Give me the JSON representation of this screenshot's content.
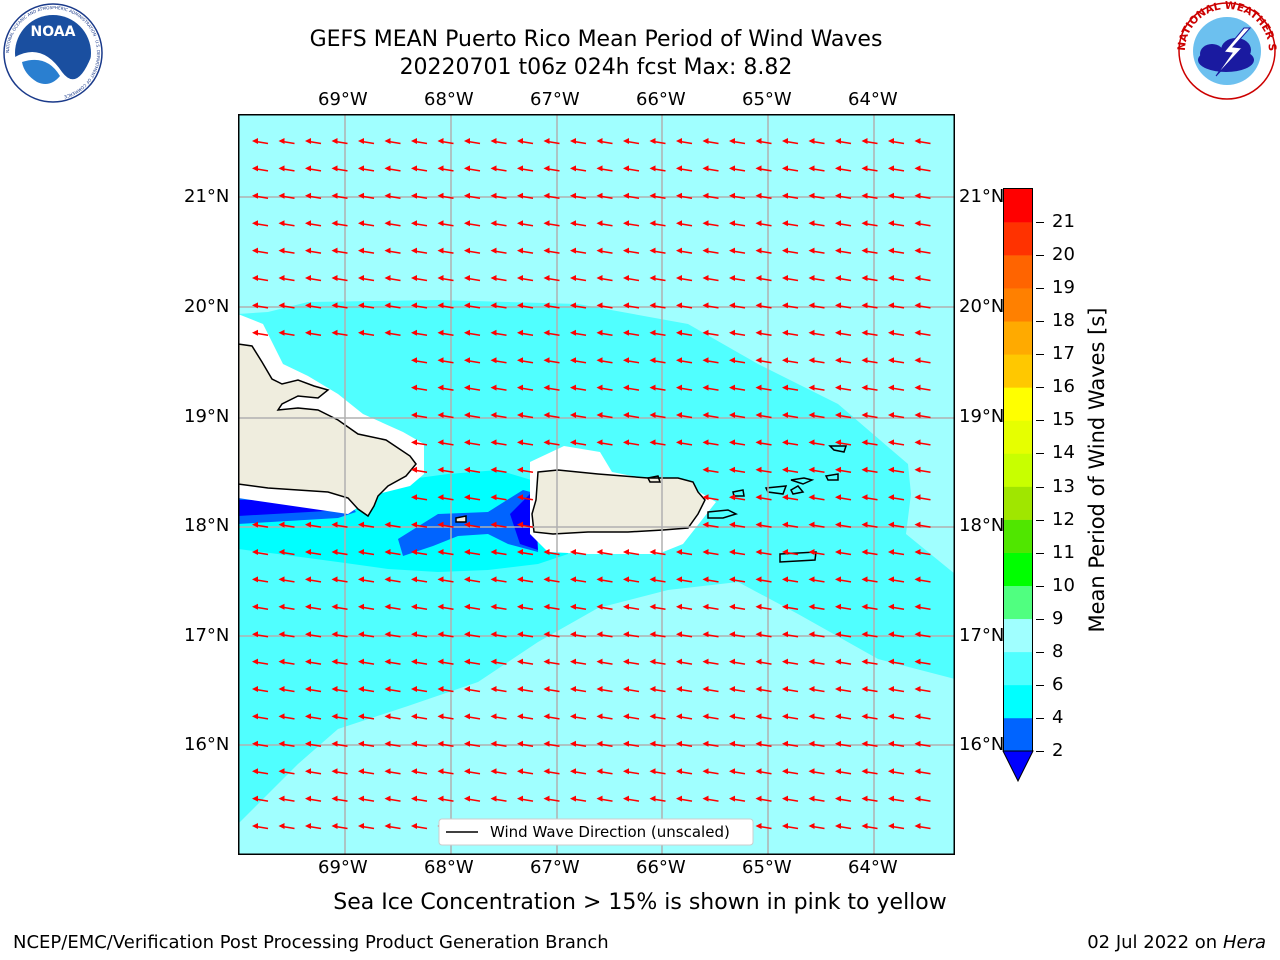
{
  "header": {
    "title_line1": "GEFS MEAN Puerto Rico Mean Period of Wind Waves",
    "title_line2": "20220701 t06z 024h fcst   Max: 8.82"
  },
  "logos": {
    "left": "NOAA",
    "left_ring_text": "NATIONAL OCEANIC AND ATMOSPHERIC ADMINISTRATION · U.S. DEPARTMENT OF COMMERCE",
    "right_ring_text": "NATIONAL WEATHER SERVICE"
  },
  "map": {
    "lon_ticks": [
      "69°W",
      "68°W",
      "67°W",
      "66°W",
      "65°W",
      "64°W"
    ],
    "lat_ticks": [
      "21°N",
      "20°N",
      "19°N",
      "18°N",
      "17°N",
      "16°N"
    ],
    "legend_label": "Wind Wave Direction (unscaled)",
    "arrow_direction": "west",
    "arrow_color": "#ff0000"
  },
  "colorbar": {
    "label": "Mean Period of Wind Waves [s]",
    "ticks": [
      "2",
      "4",
      "6",
      "8",
      "9",
      "10",
      "11",
      "12",
      "13",
      "14",
      "15",
      "16",
      "17",
      "18",
      "19",
      "20",
      "21"
    ],
    "colors": [
      "#0064ff",
      "#00ffff",
      "#50ffff",
      "#a0ffff",
      "#50ff80",
      "#00ff00",
      "#50e600",
      "#a0e600",
      "#c8ff00",
      "#e6ff00",
      "#ffff00",
      "#ffc800",
      "#ffaa00",
      "#ff8000",
      "#ff6400",
      "#ff3200",
      "#ff0000"
    ],
    "under_color": "#0000ff"
  },
  "footer": {
    "subtitle": "Sea Ice Concentration > 15% is shown in pink to yellow",
    "left": "NCEP/EMC/Verification Post Processing Product Generation Branch",
    "date": "02 Jul 2022 on ",
    "machine": "Hera"
  }
}
